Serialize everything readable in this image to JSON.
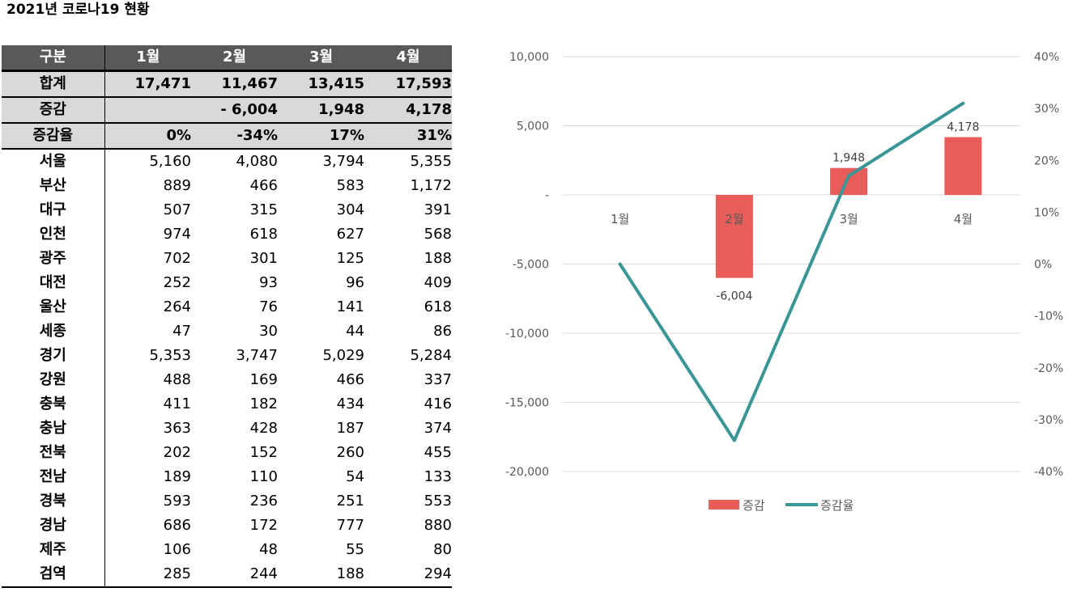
{
  "title": "2021년 코로나19 현황",
  "table": {
    "header": [
      "구분",
      "1월",
      "2월",
      "3월",
      "4월"
    ],
    "summary": [
      {
        "label": "합계",
        "values": [
          "17,471",
          "11,467",
          "13,415",
          "17,593"
        ]
      },
      {
        "label": "증감",
        "values": [
          "",
          "-   6,004",
          "1,948",
          "4,178"
        ]
      },
      {
        "label": "증감율",
        "values": [
          "0%",
          "-34%",
          "17%",
          "31%"
        ]
      }
    ],
    "rows": [
      {
        "label": "서울",
        "values": [
          "5,160",
          "4,080",
          "3,794",
          "5,355"
        ]
      },
      {
        "label": "부산",
        "values": [
          "889",
          "466",
          "583",
          "1,172"
        ]
      },
      {
        "label": "대구",
        "values": [
          "507",
          "315",
          "304",
          "391"
        ]
      },
      {
        "label": "인천",
        "values": [
          "974",
          "618",
          "627",
          "568"
        ]
      },
      {
        "label": "광주",
        "values": [
          "702",
          "301",
          "125",
          "188"
        ]
      },
      {
        "label": "대전",
        "values": [
          "252",
          "93",
          "96",
          "409"
        ]
      },
      {
        "label": "울산",
        "values": [
          "264",
          "76",
          "141",
          "618"
        ]
      },
      {
        "label": "세종",
        "values": [
          "47",
          "30",
          "44",
          "86"
        ]
      },
      {
        "label": "경기",
        "values": [
          "5,353",
          "3,747",
          "5,029",
          "5,284"
        ]
      },
      {
        "label": "강원",
        "values": [
          "488",
          "169",
          "466",
          "337"
        ]
      },
      {
        "label": "충북",
        "values": [
          "411",
          "182",
          "434",
          "416"
        ]
      },
      {
        "label": "충남",
        "values": [
          "363",
          "428",
          "187",
          "374"
        ]
      },
      {
        "label": "전북",
        "values": [
          "202",
          "152",
          "260",
          "455"
        ]
      },
      {
        "label": "전남",
        "values": [
          "189",
          "110",
          "54",
          "133"
        ]
      },
      {
        "label": "경북",
        "values": [
          "593",
          "236",
          "251",
          "553"
        ]
      },
      {
        "label": "경남",
        "values": [
          "686",
          "172",
          "777",
          "880"
        ]
      },
      {
        "label": "제주",
        "values": [
          "106",
          "48",
          "55",
          "80"
        ]
      },
      {
        "label": "검역",
        "values": [
          "285",
          "244",
          "188",
          "294"
        ]
      }
    ]
  },
  "chart_data": {
    "type": "bar",
    "categories": [
      "1월",
      "2월",
      "3월",
      "4월"
    ],
    "series": [
      {
        "name": "증감",
        "type": "bar",
        "axis": "left",
        "values": [
          0,
          -6004,
          1948,
          4178
        ],
        "labels": [
          "",
          "-6,004",
          "1,948",
          "4,178"
        ],
        "color": "#e85d5a"
      },
      {
        "name": "증감율",
        "type": "line",
        "axis": "right",
        "values": [
          0,
          -0.34,
          0.17,
          0.31
        ],
        "color": "#3a9696"
      }
    ],
    "y_left": {
      "min": -20000,
      "max": 10000,
      "ticks": [
        10000,
        5000,
        0,
        -5000,
        -10000,
        -15000,
        -20000
      ],
      "tick_labels": [
        "10,000",
        "5,000",
        "-",
        "-5,000",
        "-10,000",
        "-15,000",
        "-20,000"
      ]
    },
    "y_right": {
      "min": -0.4,
      "max": 0.4,
      "ticks": [
        0.4,
        0.3,
        0.2,
        0.1,
        0,
        -0.1,
        -0.2,
        -0.3,
        -0.4
      ],
      "tick_labels": [
        "40%",
        "30%",
        "20%",
        "10%",
        "0%",
        "-10%",
        "-20%",
        "-30%",
        "-40%"
      ]
    },
    "grid": true,
    "legend": "bottom"
  }
}
